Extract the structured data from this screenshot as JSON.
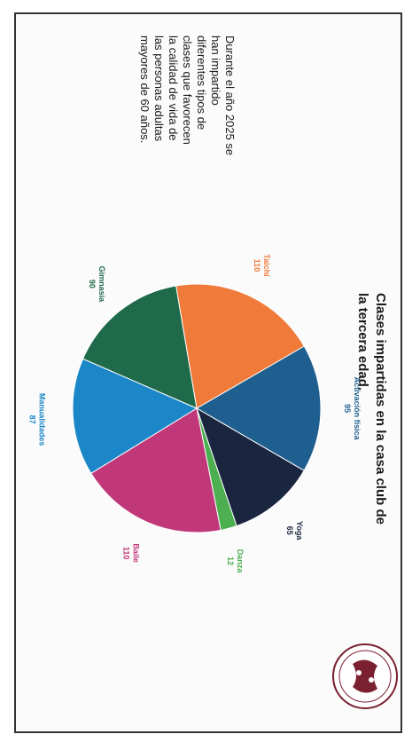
{
  "chart_data": {
    "type": "pie",
    "title": "Clases impartidas en la casa club de la tercera edad.",
    "description": "Durante el año 2025 se han impartido diferentes tipos de clases que favorecen la calidad de vida de las personas adultas mayores de 60 años.",
    "slices": [
      {
        "label": "Activación física",
        "value": 95,
        "color": "#1f5f8f"
      },
      {
        "label": "Yoga",
        "value": 65,
        "color": "#1a2540"
      },
      {
        "label": "Danza",
        "value": 12,
        "color": "#4caf50"
      },
      {
        "label": "Baile",
        "value": 110,
        "color": "#c0387a"
      },
      {
        "label": "Manualidades",
        "value": 87,
        "color": "#1c87c8"
      },
      {
        "label": "Gimnasia",
        "value": 90,
        "color": "#1e6a4a"
      },
      {
        "label": "Taichí",
        "value": 110,
        "color": "#f07a3a"
      }
    ]
  }
}
